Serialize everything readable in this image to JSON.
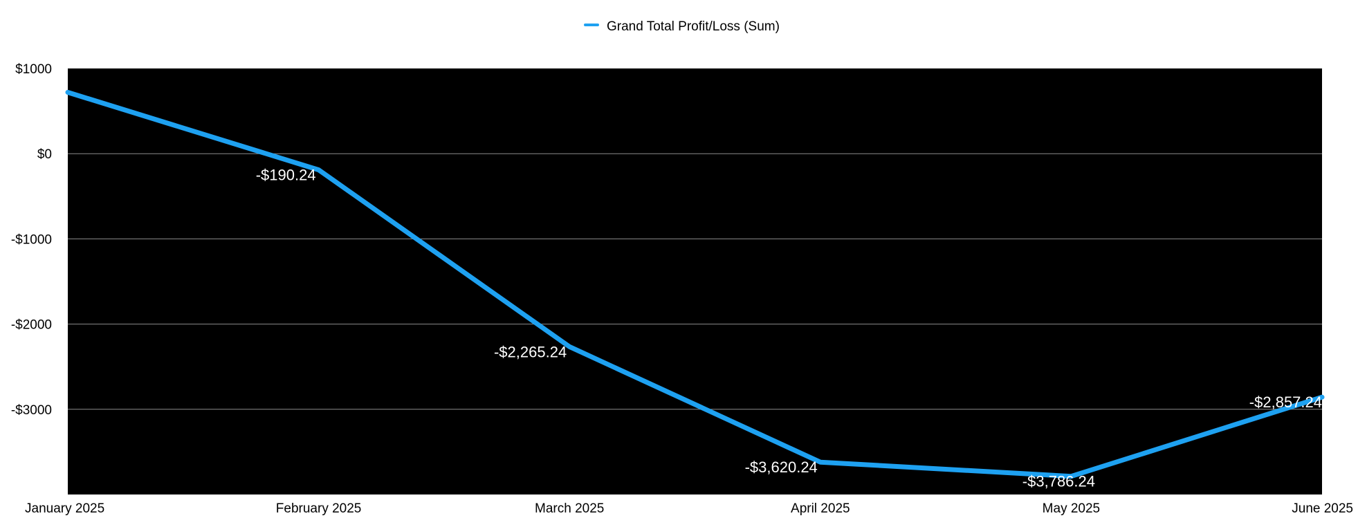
{
  "chart_data": {
    "type": "line",
    "categories": [
      "January 2025",
      "February 2025",
      "March 2025",
      "April 2025",
      "May 2025",
      "June 2025"
    ],
    "series": [
      {
        "name": "Grand Total Profit/Loss (Sum)",
        "values": [
          720,
          -190.24,
          -2265.24,
          -3620.24,
          -3786.24,
          -2857.24
        ],
        "data_labels": [
          "",
          "-$190.24",
          "-$2,265.24",
          "-$3,620.24",
          "-$3,786.24",
          "-$2,857.24"
        ]
      }
    ],
    "ylim": [
      -4000,
      1000
    ],
    "yticks": [
      1000,
      0,
      -1000,
      -2000,
      -3000
    ],
    "ytick_labels": [
      "$1000",
      "$0",
      "-$1000",
      "-$2000",
      "-$3000"
    ],
    "legend_position": "top-center",
    "grid": true,
    "colors": {
      "line": "#1ea1f1",
      "plot_background": "#000000",
      "grid": "#8c8c8c"
    }
  }
}
